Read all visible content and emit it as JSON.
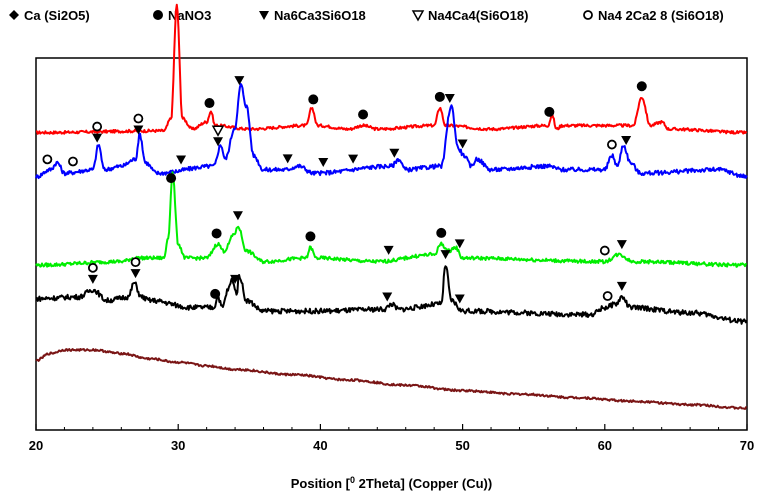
{
  "chart_data": {
    "type": "line",
    "xlabel_parts": [
      "Position [",
      "0",
      " 2Theta] (Copper (Cu))"
    ],
    "xlim": [
      20,
      70
    ],
    "x_ticks": [
      "20",
      "30",
      "40",
      "50",
      "60",
      "70"
    ],
    "grid": false,
    "legend_position": "top",
    "legend": [
      {
        "name": "Ca (Si2O5)",
        "marker": "diamond-filled"
      },
      {
        "name": "NaNO3",
        "marker": "circle-filled"
      },
      {
        "name": "Na6Ca3Si6O18",
        "marker": "triangle-down-filled"
      },
      {
        "name": "Na4Ca4(Si6O18)",
        "marker": "triangle-down-open"
      },
      {
        "name": "Na4 2Ca2 8 (Si6O18)",
        "marker": "circle-open"
      }
    ],
    "series": [
      {
        "color": "#ff0000",
        "baseline": 0.785,
        "noise": 0.004,
        "points": [
          [
            20,
            0.0
          ],
          [
            29,
            0.005
          ],
          [
            29.5,
            0.04
          ],
          [
            29.9,
            0.36
          ],
          [
            30.3,
            0.04
          ],
          [
            31,
            0.01
          ],
          [
            32,
            0.03
          ],
          [
            32.3,
            0.06
          ],
          [
            32.6,
            0.02
          ],
          [
            35,
            0.01
          ],
          [
            39,
            0.02
          ],
          [
            39.4,
            0.07
          ],
          [
            39.8,
            0.02
          ],
          [
            42,
            0.01
          ],
          [
            43,
            0.02
          ],
          [
            44,
            0.01
          ],
          [
            48,
            0.02
          ],
          [
            48.4,
            0.07
          ],
          [
            48.8,
            0.02
          ],
          [
            52,
            0.01
          ],
          [
            56,
            0.02
          ],
          [
            56.3,
            0.05
          ],
          [
            56.6,
            0.01
          ],
          [
            57,
            0.02
          ],
          [
            62,
            0.02
          ],
          [
            62.6,
            0.1
          ],
          [
            63.2,
            0.02
          ],
          [
            64,
            0.03
          ],
          [
            64.5,
            0.01
          ],
          [
            70,
            0.0
          ]
        ],
        "markers": [
          {
            "x": 29.9,
            "sym": "diamond-filled",
            "stack": 2
          },
          {
            "x": 32.2,
            "sym": "circle-filled"
          },
          {
            "x": 39.5,
            "sym": "circle-filled"
          },
          {
            "x": 43.0,
            "sym": "circle-filled"
          },
          {
            "x": 48.4,
            "sym": "circle-filled"
          },
          {
            "x": 56.1,
            "sym": "circle-filled"
          },
          {
            "x": 62.6,
            "sym": "circle-filled"
          }
        ]
      },
      {
        "color": "#0000ff",
        "baseline": 0.66,
        "noise": 0.006,
        "points": [
          [
            20,
            0.0
          ],
          [
            21,
            0.02
          ],
          [
            21.5,
            0.04
          ],
          [
            22,
            0.01
          ],
          [
            24,
            0.02
          ],
          [
            24.4,
            0.09
          ],
          [
            24.8,
            0.02
          ],
          [
            26,
            0.03
          ],
          [
            27,
            0.05
          ],
          [
            27.3,
            0.12
          ],
          [
            27.7,
            0.04
          ],
          [
            28.5,
            0.01
          ],
          [
            32.5,
            0.03
          ],
          [
            33,
            0.09
          ],
          [
            33.3,
            0.05
          ],
          [
            34,
            0.14
          ],
          [
            34.4,
            0.26
          ],
          [
            34.8,
            0.2
          ],
          [
            35.3,
            0.06
          ],
          [
            36,
            0.02
          ],
          [
            37.5,
            0.02
          ],
          [
            38.5,
            0.03
          ],
          [
            39.5,
            0.01
          ],
          [
            45,
            0.03
          ],
          [
            45.5,
            0.05
          ],
          [
            46,
            0.02
          ],
          [
            48.5,
            0.03
          ],
          [
            49.2,
            0.2
          ],
          [
            49.7,
            0.08
          ],
          [
            50.1,
            0.06
          ],
          [
            50.6,
            0.03
          ],
          [
            51,
            0.05
          ],
          [
            52,
            0.02
          ],
          [
            56,
            0.03
          ],
          [
            57,
            0.02
          ],
          [
            60,
            0.02
          ],
          [
            60.5,
            0.06
          ],
          [
            60.9,
            0.03
          ],
          [
            61.3,
            0.09
          ],
          [
            61.8,
            0.04
          ],
          [
            62.5,
            0.01
          ],
          [
            68,
            0.02
          ],
          [
            70,
            0.0
          ]
        ],
        "markers": [
          {
            "x": 20.8,
            "sym": "circle-open"
          },
          {
            "x": 22.6,
            "sym": "circle-open"
          },
          {
            "x": 24.3,
            "sym": "triangle-down-filled",
            "stack_top": "circle-open"
          },
          {
            "x": 27.2,
            "sym": "triangle-down-filled",
            "stack_top": "circle-open"
          },
          {
            "x": 30.2,
            "sym": "triangle-down-filled"
          },
          {
            "x": 32.8,
            "sym": "triangle-down-filled",
            "stack_top": "triangle-down-open"
          },
          {
            "x": 34.3,
            "sym": "triangle-down-filled"
          },
          {
            "x": 37.7,
            "sym": "triangle-down-filled"
          },
          {
            "x": 40.2,
            "sym": "triangle-down-filled"
          },
          {
            "x": 42.3,
            "sym": "triangle-down-filled"
          },
          {
            "x": 45.2,
            "sym": "triangle-down-filled"
          },
          {
            "x": 49.1,
            "sym": "triangle-down-filled"
          },
          {
            "x": 50.0,
            "sym": "triangle-down-filled"
          },
          {
            "x": 60.5,
            "sym": "circle-open"
          },
          {
            "x": 61.5,
            "sym": "triangle-down-filled"
          }
        ]
      },
      {
        "color": "#00ee00",
        "baseline": 0.41,
        "noise": 0.005,
        "points": [
          [
            20,
            0.0
          ],
          [
            26,
            0.01
          ],
          [
            27,
            0.02
          ],
          [
            29,
            0.02
          ],
          [
            29.3,
            0.08
          ],
          [
            29.6,
            0.26
          ],
          [
            30,
            0.06
          ],
          [
            30.5,
            0.02
          ],
          [
            32,
            0.02
          ],
          [
            32.8,
            0.06
          ],
          [
            33.2,
            0.04
          ],
          [
            34,
            0.09
          ],
          [
            34.2,
            0.11
          ],
          [
            34.8,
            0.04
          ],
          [
            36,
            0.01
          ],
          [
            39,
            0.02
          ],
          [
            39.3,
            0.05
          ],
          [
            39.7,
            0.02
          ],
          [
            44,
            0.01
          ],
          [
            48,
            0.03
          ],
          [
            48.5,
            0.06
          ],
          [
            49,
            0.04
          ],
          [
            49.5,
            0.05
          ],
          [
            50,
            0.02
          ],
          [
            60,
            0.01
          ],
          [
            61,
            0.03
          ],
          [
            62,
            0.01
          ],
          [
            70,
            0.0
          ]
        ],
        "markers": [
          {
            "x": 29.5,
            "sym": "circle-filled"
          },
          {
            "x": 32.7,
            "sym": "circle-filled"
          },
          {
            "x": 34.2,
            "sym": "triangle-down-filled"
          },
          {
            "x": 39.3,
            "sym": "circle-filled"
          },
          {
            "x": 44.8,
            "sym": "triangle-down-filled"
          },
          {
            "x": 48.5,
            "sym": "circle-filled"
          },
          {
            "x": 49.8,
            "sym": "triangle-down-filled"
          },
          {
            "x": 60.0,
            "sym": "circle-open"
          },
          {
            "x": 61.2,
            "sym": "triangle-down-filled"
          }
        ]
      },
      {
        "color": "#000000",
        "baseline": 0.27,
        "noise": 0.007,
        "points": [
          [
            20,
            0.045
          ],
          [
            23,
            0.05
          ],
          [
            24,
            0.07
          ],
          [
            25,
            0.04
          ],
          [
            26.5,
            0.05
          ],
          [
            26.9,
            0.09
          ],
          [
            27.4,
            0.05
          ],
          [
            28,
            0.04
          ],
          [
            31,
            0.02
          ],
          [
            32.5,
            0.02
          ],
          [
            32.8,
            0.05
          ],
          [
            33.1,
            0.02
          ],
          [
            33.5,
            0.07
          ],
          [
            33.8,
            0.1
          ],
          [
            34.1,
            0.06
          ],
          [
            34.3,
            0.11
          ],
          [
            34.8,
            0.04
          ],
          [
            36,
            0.01
          ],
          [
            40,
            0.01
          ],
          [
            44.5,
            0.015
          ],
          [
            45,
            0.03
          ],
          [
            45.5,
            0.015
          ],
          [
            48.5,
            0.03
          ],
          [
            48.8,
            0.14
          ],
          [
            49.2,
            0.04
          ],
          [
            50,
            0.01
          ],
          [
            59,
            0.0
          ],
          [
            60,
            0.02
          ],
          [
            60.8,
            0.03
          ],
          [
            61.2,
            0.05
          ],
          [
            61.8,
            0.02
          ],
          [
            66,
            0.005
          ],
          [
            70,
            -0.02
          ]
        ],
        "markers": [
          {
            "x": 24.0,
            "sym": "triangle-down-filled",
            "stack_top": "circle-open"
          },
          {
            "x": 27.0,
            "sym": "triangle-down-filled",
            "stack_top": "circle-open"
          },
          {
            "x": 32.6,
            "sym": "circle-filled"
          },
          {
            "x": 34.0,
            "sym": "triangle-down-filled"
          },
          {
            "x": 44.7,
            "sym": "triangle-down-filled"
          },
          {
            "x": 48.8,
            "sym": "triangle-down-filled"
          },
          {
            "x": 49.8,
            "sym": "triangle-down-filled"
          },
          {
            "x": 60.2,
            "sym": "circle-open"
          },
          {
            "x": 61.2,
            "sym": "triangle-down-filled"
          }
        ]
      },
      {
        "color": "#7a1515",
        "baseline": 0.0,
        "noise": 0.003,
        "points": [
          [
            20,
            0.14
          ],
          [
            21,
            0.16
          ],
          [
            22,
            0.17
          ],
          [
            24,
            0.17
          ],
          [
            26,
            0.16
          ],
          [
            28,
            0.145
          ],
          [
            30,
            0.135
          ],
          [
            32,
            0.125
          ],
          [
            34,
            0.115
          ],
          [
            38,
            0.1
          ],
          [
            42,
            0.085
          ],
          [
            46,
            0.07
          ],
          [
            50,
            0.055
          ],
          [
            54,
            0.045
          ],
          [
            58,
            0.035
          ],
          [
            62,
            0.025
          ],
          [
            66,
            0.015
          ],
          [
            70,
            0.005
          ]
        ],
        "markers": []
      }
    ]
  }
}
